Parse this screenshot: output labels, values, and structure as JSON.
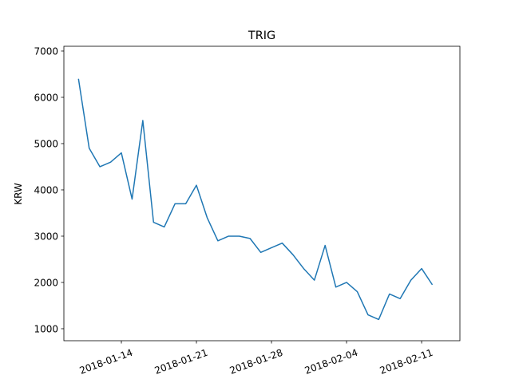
{
  "chart_data": {
    "type": "line",
    "title": "TRIG",
    "y_label": "KRW",
    "x": [
      "2018-01-10",
      "2018-01-11",
      "2018-01-12",
      "2018-01-13",
      "2018-01-14",
      "2018-01-15",
      "2018-01-16",
      "2018-01-17",
      "2018-01-18",
      "2018-01-19",
      "2018-01-20",
      "2018-01-21",
      "2018-01-22",
      "2018-01-23",
      "2018-01-24",
      "2018-01-25",
      "2018-01-26",
      "2018-01-27",
      "2018-01-28",
      "2018-01-29",
      "2018-01-30",
      "2018-01-31",
      "2018-02-01",
      "2018-02-02",
      "2018-02-03",
      "2018-02-04",
      "2018-02-05",
      "2018-02-06",
      "2018-02-07",
      "2018-02-08",
      "2018-02-09",
      "2018-02-10",
      "2018-02-11",
      "2018-02-12"
    ],
    "values": [
      6400,
      4900,
      4500,
      4600,
      4800,
      3800,
      5500,
      3300,
      3200,
      3700,
      3700,
      4100,
      3400,
      2900,
      3000,
      3000,
      2950,
      2650,
      2750,
      2850,
      2600,
      2300,
      2050,
      2800,
      1900,
      2000,
      1800,
      1300,
      1200,
      1750,
      1650,
      2050,
      2300,
      1950
    ],
    "color": "#1f77b4",
    "xlim": [
      "2018-01-08T15:20:00Z",
      "2018-02-14T13:40:00Z"
    ],
    "xticks": [
      "2018-01-14",
      "2018-01-21",
      "2018-01-28",
      "2018-02-04",
      "2018-02-11"
    ],
    "ylim": [
      741,
      7103
    ],
    "yticks": [
      1000,
      2000,
      3000,
      4000,
      5000,
      6000,
      7000
    ]
  }
}
